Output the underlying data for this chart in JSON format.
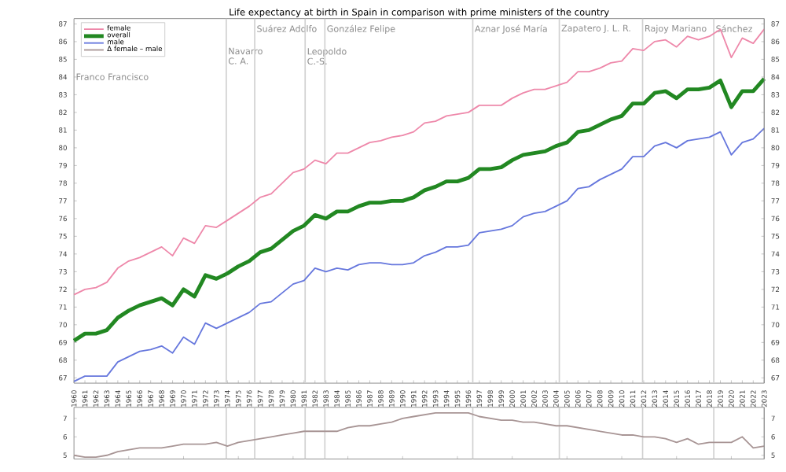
{
  "chart_data": [
    {
      "type": "line",
      "title": "Life expectancy at birth in Spain in comparison with prime ministers of the country",
      "x": [
        1960,
        1961,
        1962,
        1963,
        1964,
        1965,
        1966,
        1967,
        1968,
        1969,
        1970,
        1971,
        1972,
        1973,
        1974,
        1975,
        1976,
        1977,
        1978,
        1979,
        1980,
        1981,
        1982,
        1983,
        1984,
        1985,
        1986,
        1987,
        1988,
        1989,
        1990,
        1991,
        1992,
        1993,
        1994,
        1995,
        1996,
        1997,
        1998,
        1999,
        2000,
        2001,
        2002,
        2003,
        2004,
        2005,
        2006,
        2007,
        2008,
        2009,
        2010,
        2011,
        2012,
        2013,
        2014,
        2015,
        2016,
        2017,
        2018,
        2019,
        2020,
        2021,
        2022,
        2023
      ],
      "series": [
        {
          "name": "female",
          "color": "#ee88aa",
          "values": [
            71.7,
            72.0,
            72.1,
            72.4,
            73.2,
            73.6,
            73.8,
            74.1,
            74.4,
            73.9,
            74.9,
            74.6,
            75.6,
            75.5,
            75.9,
            76.3,
            76.7,
            77.2,
            77.4,
            78.0,
            78.6,
            78.8,
            79.3,
            79.1,
            79.7,
            79.7,
            80.0,
            80.3,
            80.4,
            80.6,
            80.7,
            80.9,
            81.4,
            81.5,
            81.8,
            81.9,
            82.0,
            82.4,
            82.4,
            82.4,
            82.8,
            83.1,
            83.3,
            83.3,
            83.5,
            83.7,
            84.3,
            84.3,
            84.5,
            84.8,
            84.9,
            85.6,
            85.5,
            86.0,
            86.1,
            85.7,
            86.3,
            86.1,
            86.3,
            86.7,
            85.1,
            86.2,
            85.9,
            86.7
          ]
        },
        {
          "name": "overall",
          "color": "#228822",
          "values": [
            69.1,
            69.5,
            69.5,
            69.7,
            70.4,
            70.8,
            71.1,
            71.3,
            71.5,
            71.1,
            72.0,
            71.6,
            72.8,
            72.6,
            72.9,
            73.3,
            73.6,
            74.1,
            74.3,
            74.8,
            75.3,
            75.6,
            76.2,
            76.0,
            76.4,
            76.4,
            76.7,
            76.9,
            76.9,
            77.0,
            77.0,
            77.2,
            77.6,
            77.8,
            78.1,
            78.1,
            78.3,
            78.8,
            78.8,
            78.9,
            79.3,
            79.6,
            79.7,
            79.8,
            80.1,
            80.3,
            80.9,
            81.0,
            81.3,
            81.6,
            81.8,
            82.5,
            82.5,
            83.1,
            83.2,
            82.8,
            83.3,
            83.3,
            83.4,
            83.8,
            82.3,
            83.2,
            83.2,
            83.9
          ]
        },
        {
          "name": "male",
          "color": "#6677dd",
          "values": [
            66.8,
            67.1,
            67.1,
            67.1,
            67.9,
            68.2,
            68.5,
            68.6,
            68.8,
            68.4,
            69.3,
            68.9,
            70.1,
            69.8,
            70.1,
            70.4,
            70.7,
            71.2,
            71.3,
            71.8,
            72.3,
            72.5,
            73.2,
            73.0,
            73.2,
            73.1,
            73.4,
            73.5,
            73.5,
            73.4,
            73.4,
            73.5,
            73.9,
            74.1,
            74.4,
            74.4,
            74.5,
            75.2,
            75.3,
            75.4,
            75.6,
            76.1,
            76.3,
            76.4,
            76.7,
            77.0,
            77.7,
            77.8,
            78.2,
            78.5,
            78.8,
            79.5,
            79.5,
            80.1,
            80.3,
            80.0,
            80.4,
            80.5,
            80.6,
            80.9,
            79.6,
            80.3,
            80.5,
            81.1
          ]
        }
      ],
      "xlim": [
        1960,
        2023
      ],
      "xticks": [
        1960,
        1961,
        1962,
        1963,
        1964,
        1965,
        1966,
        1967,
        1968,
        1969,
        1970,
        1971,
        1972,
        1973,
        1974,
        1975,
        1976,
        1977,
        1978,
        1979,
        1980,
        1981,
        1982,
        1983,
        1984,
        1985,
        1986,
        1987,
        1988,
        1989,
        1990,
        1991,
        1992,
        1993,
        1994,
        1995,
        1996,
        1997,
        1998,
        1999,
        2000,
        2001,
        2002,
        2003,
        2004,
        2005,
        2006,
        2007,
        2008,
        2009,
        2010,
        2011,
        2012,
        2013,
        2014,
        2015,
        2016,
        2017,
        2018,
        2019,
        2020,
        2021,
        2022,
        2023
      ],
      "ylim": [
        66.7,
        87.3
      ],
      "yticks": [
        67,
        68,
        69,
        70,
        71,
        72,
        73,
        74,
        75,
        76,
        77,
        78,
        79,
        80,
        81,
        82,
        83,
        84,
        85,
        86,
        87
      ],
      "y2lim": [
        66.7,
        87.3
      ],
      "y2ticks": [
        67,
        68,
        69,
        70,
        71,
        72,
        73,
        74,
        75,
        76,
        77,
        78,
        79,
        80,
        81,
        82,
        83,
        84,
        85,
        86,
        87
      ],
      "legend": "top left",
      "marker": "none",
      "annotations": [
        "Franco Francisco"
      ],
      "ref_lines": [
        {
          "axis": "x",
          "value": 1973.9,
          "label": "Navarro C. A."
        },
        {
          "axis": "x",
          "value": 1976.5,
          "label": "Suárez Adolfo"
        },
        {
          "axis": "x",
          "value": 1981.1,
          "label": "Leopoldo C.-S."
        },
        {
          "axis": "x",
          "value": 1982.9,
          "label": "González Felipe"
        },
        {
          "axis": "x",
          "value": 1996.4,
          "label": "Aznar José María"
        },
        {
          "axis": "x",
          "value": 2004.3,
          "label": "Zapatero J. L. R."
        },
        {
          "axis": "x",
          "value": 2011.9,
          "label": "Rajoy Mariano"
        },
        {
          "axis": "x",
          "value": 2018.4,
          "label": "Sánchez"
        }
      ]
    },
    {
      "type": "line",
      "x": [
        1960,
        1961,
        1962,
        1963,
        1964,
        1965,
        1966,
        1967,
        1968,
        1969,
        1970,
        1971,
        1972,
        1973,
        1974,
        1975,
        1976,
        1977,
        1978,
        1979,
        1980,
        1981,
        1982,
        1983,
        1984,
        1985,
        1986,
        1987,
        1988,
        1989,
        1990,
        1991,
        1992,
        1993,
        1994,
        1995,
        1996,
        1997,
        1998,
        1999,
        2000,
        2001,
        2002,
        2003,
        2004,
        2005,
        2006,
        2007,
        2008,
        2009,
        2010,
        2011,
        2012,
        2013,
        2014,
        2015,
        2016,
        2017,
        2018,
        2019,
        2020,
        2021,
        2022,
        2023
      ],
      "series": [
        {
          "name": "Δ female – male",
          "color": "#a89595",
          "values": [
            5.0,
            4.9,
            4.9,
            5.0,
            5.2,
            5.3,
            5.4,
            5.4,
            5.4,
            5.5,
            5.6,
            5.6,
            5.6,
            5.7,
            5.5,
            5.7,
            5.8,
            5.9,
            6.0,
            6.1,
            6.2,
            6.3,
            6.3,
            6.3,
            6.3,
            6.5,
            6.6,
            6.6,
            6.7,
            6.8,
            7.0,
            7.1,
            7.2,
            7.3,
            7.3,
            7.3,
            7.3,
            7.1,
            7.0,
            6.9,
            6.9,
            6.8,
            6.8,
            6.7,
            6.6,
            6.6,
            6.5,
            6.4,
            6.3,
            6.2,
            6.1,
            6.1,
            6.0,
            6.0,
            5.9,
            5.7,
            5.9,
            5.6,
            5.7,
            5.7,
            5.7,
            6.0,
            5.4,
            5.5
          ]
        }
      ],
      "xlim": [
        1960,
        2023
      ],
      "ylim": [
        4.8,
        7.6
      ],
      "yticks": [
        5,
        6,
        7
      ],
      "y2lim": [
        4.8,
        7.6
      ],
      "y2ticks": [
        5,
        6,
        7
      ],
      "tick_labels": "y",
      "marker": "none",
      "ref_lines": [
        {
          "axis": "x",
          "value": 1973.9
        },
        {
          "axis": "x",
          "value": 1976.5
        },
        {
          "axis": "x",
          "value": 1981.1
        },
        {
          "axis": "x",
          "value": 1982.9
        },
        {
          "axis": "x",
          "value": 1996.4
        },
        {
          "axis": "x",
          "value": 2004.3
        },
        {
          "axis": "x",
          "value": 2011.9
        },
        {
          "axis": "x",
          "value": 2018.4
        }
      ]
    }
  ]
}
